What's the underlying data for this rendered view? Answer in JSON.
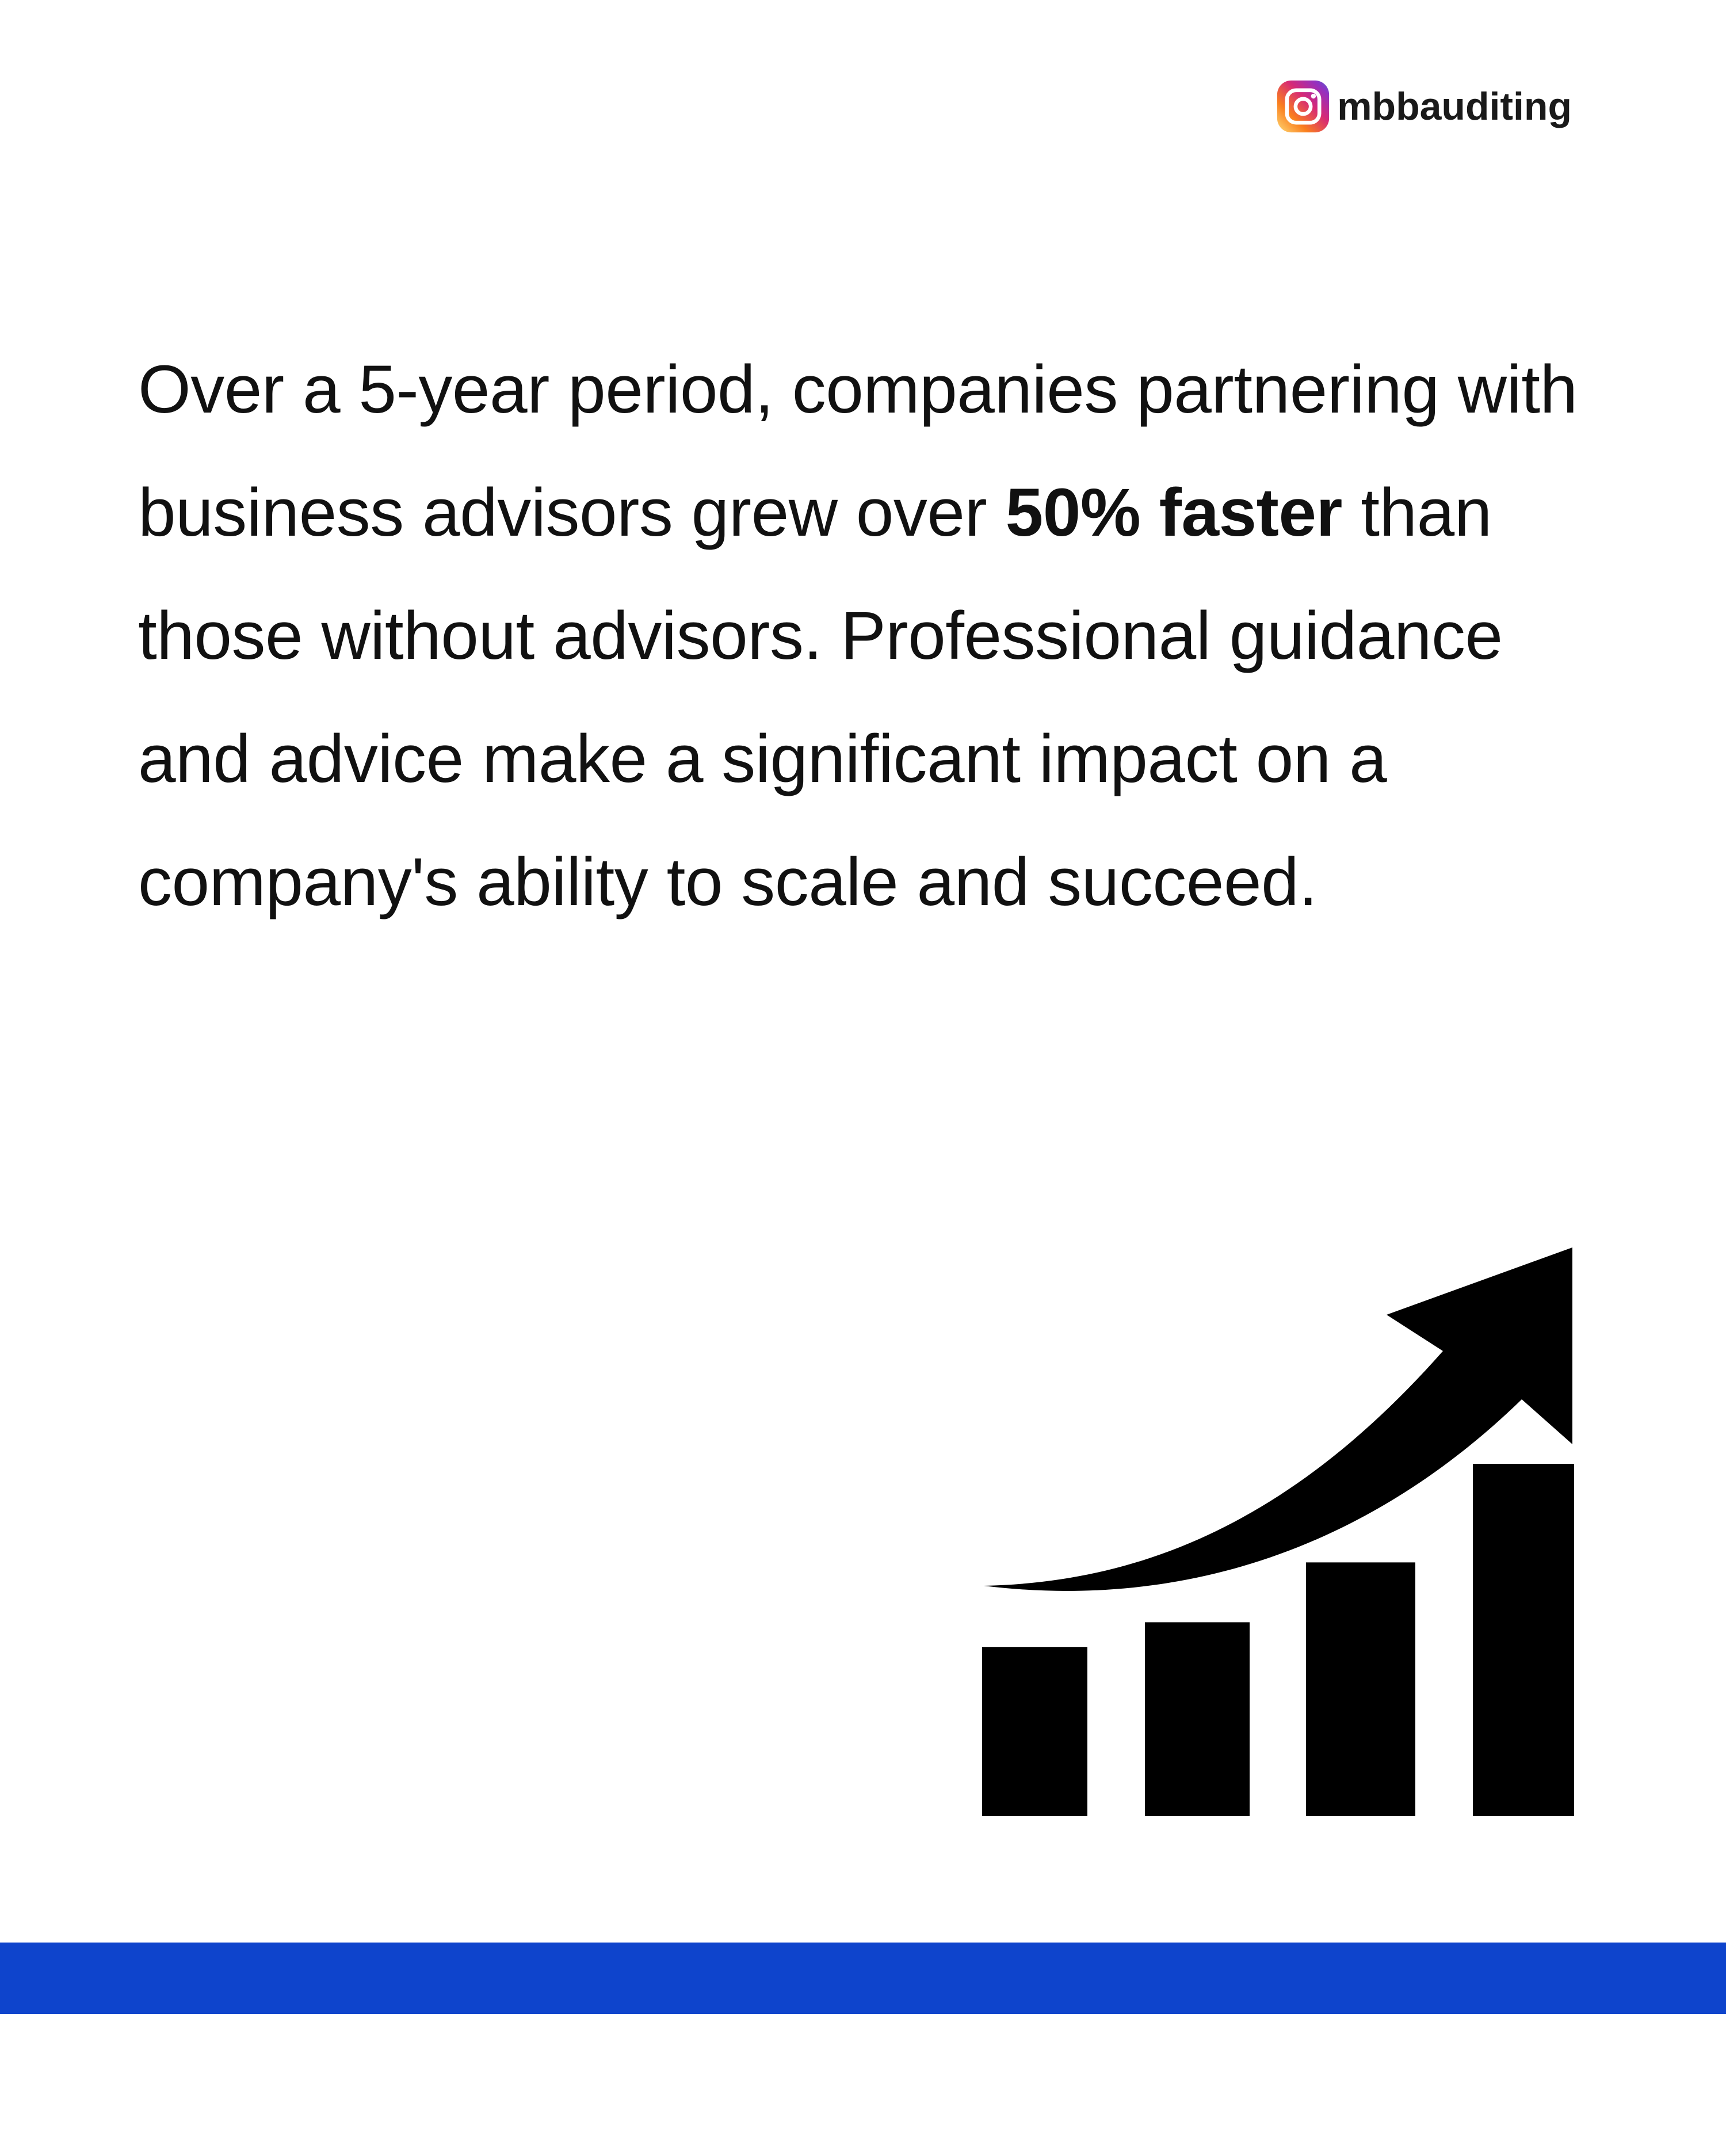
{
  "header": {
    "instagram_handle": "mbbauditing",
    "icon": "instagram-icon"
  },
  "content": {
    "paragraph_before_highlight": "Over a 5-year period, companies partnering with business advisors grew over ",
    "highlight": "50% faster",
    "paragraph_after_highlight": " than those without advisors. Professional guidance and advice make a significant impact on a company's ability to scale and succeed."
  },
  "graphic": {
    "icon": "growth-chart-arrow-icon",
    "bar_levels": [
      0.48,
      0.55,
      0.72,
      1.0
    ],
    "color": "#000000"
  },
  "footer": {
    "bar_color": "#0e44cc"
  }
}
